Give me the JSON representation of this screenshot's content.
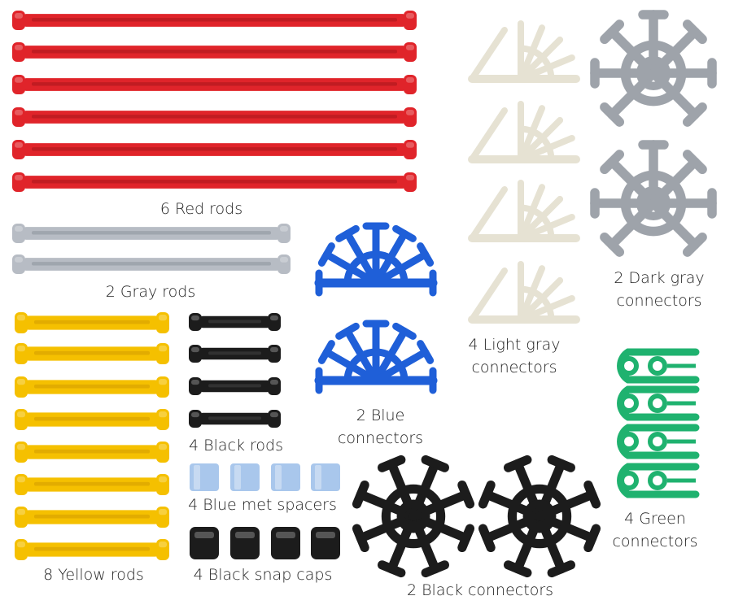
{
  "labels": {
    "red_rods": "6 Red rods",
    "gray_rods": "2 Gray rods",
    "yellow_rods": "8 Yellow rods",
    "black_rods": "4 Black rods",
    "spacers": "4 Blue met spacers",
    "snap_caps": "4 Black snap caps",
    "blue_conn_1": "2 Blue",
    "blue_conn_2": "connectors",
    "light_gray_1": "4 Light gray",
    "light_gray_2": "connectors",
    "dark_gray_1": "2 Dark gray",
    "dark_gray_2": "connectors",
    "green_1": "4 Green",
    "green_2": "connectors",
    "black_conn": "2 Black connectors"
  },
  "parts": {
    "red_rod_count": 6,
    "gray_rod_count": 2,
    "yellow_rod_count": 8,
    "black_rod_count": 4,
    "spacer_count": 4,
    "snap_cap_count": 4,
    "blue_connector_count": 2,
    "light_gray_connector_count": 4,
    "dark_gray_connector_count": 2,
    "green_connector_count": 4,
    "black_connector_count": 2
  },
  "colors": {
    "red": "#e0242a",
    "red_dark": "#a8151b",
    "gray_rod": "#b7bcc4",
    "gray_rod_dark": "#8d939c",
    "yellow": "#f5c000",
    "yellow_dark": "#d19a00",
    "black": "#1c1c1c",
    "spacer": "#a9c7ec",
    "blue": "#1f5fd8",
    "light_gray": "#e6e2d3",
    "dark_gray": "#9ea3aa",
    "green": "#1fb26f"
  }
}
